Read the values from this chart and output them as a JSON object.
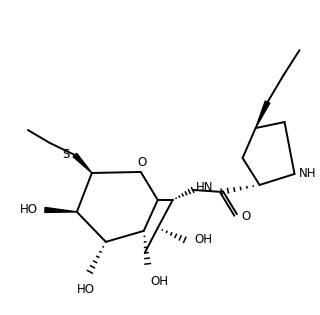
{
  "background": "#ffffff",
  "line_color": "#000000",
  "lw": 1.4,
  "figsize": [
    3.2,
    3.15
  ],
  "dpi": 100,
  "xlim": [
    0,
    320
  ],
  "ylim": [
    0,
    315
  ]
}
